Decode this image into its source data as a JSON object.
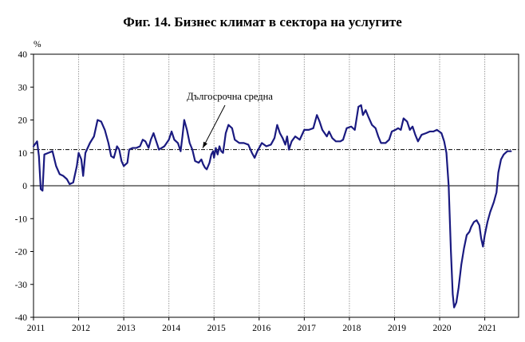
{
  "chart_data": {
    "type": "line",
    "title": "Фиг. 14. Бизнес климат в сектора на услугите",
    "ylabel": "%",
    "xlabel": "",
    "ylim": [
      -40,
      40
    ],
    "yticks": [
      40,
      30,
      20,
      10,
      0,
      -10,
      -20,
      -30,
      -40
    ],
    "xlim": [
      2011.0,
      2021.75
    ],
    "xticks": [
      "2011",
      "2012",
      "2013",
      "2014",
      "2015",
      "2016",
      "2017",
      "2018",
      "2019",
      "2020",
      "2021"
    ],
    "vertical_gridlines": "yearly, dotted",
    "reference_lines": [
      {
        "label": "Дългосрочна средна",
        "value": 11,
        "style": "dash-dot"
      },
      {
        "label": "",
        "value": 0,
        "style": "solid"
      }
    ],
    "annotation": {
      "text": "Дългосрочна средна",
      "arrow_to": {
        "x": 2014.75,
        "y": 11
      }
    },
    "series": [
      {
        "color": "#1a1a80",
        "points": [
          [
            2011.0,
            12
          ],
          [
            2011.08,
            13.5
          ],
          [
            2011.12,
            9
          ],
          [
            2011.16,
            -1
          ],
          [
            2011.2,
            -1.5
          ],
          [
            2011.24,
            9.5
          ],
          [
            2011.33,
            10
          ],
          [
            2011.42,
            10.5
          ],
          [
            2011.5,
            6
          ],
          [
            2011.58,
            3.5
          ],
          [
            2011.66,
            3
          ],
          [
            2011.74,
            2
          ],
          [
            2011.8,
            0.5
          ],
          [
            2011.88,
            1
          ],
          [
            2011.96,
            6
          ],
          [
            2012.0,
            10
          ],
          [
            2012.06,
            8
          ],
          [
            2012.1,
            3
          ],
          [
            2012.15,
            10
          ],
          [
            2012.25,
            13
          ],
          [
            2012.34,
            15
          ],
          [
            2012.42,
            20
          ],
          [
            2012.5,
            19.5
          ],
          [
            2012.58,
            17
          ],
          [
            2012.66,
            13
          ],
          [
            2012.72,
            9
          ],
          [
            2012.78,
            8.5
          ],
          [
            2012.85,
            12
          ],
          [
            2012.9,
            11
          ],
          [
            2012.95,
            7.5
          ],
          [
            2013.0,
            6
          ],
          [
            2013.08,
            7
          ],
          [
            2013.12,
            11
          ],
          [
            2013.2,
            11.5
          ],
          [
            2013.28,
            11.5
          ],
          [
            2013.36,
            12
          ],
          [
            2013.42,
            14
          ],
          [
            2013.48,
            13.5
          ],
          [
            2013.55,
            11.5
          ],
          [
            2013.6,
            14
          ],
          [
            2013.66,
            16
          ],
          [
            2013.72,
            13.5
          ],
          [
            2013.78,
            11
          ],
          [
            2013.84,
            11.5
          ],
          [
            2013.9,
            12
          ],
          [
            2014.0,
            14
          ],
          [
            2014.06,
            16.5
          ],
          [
            2014.12,
            14
          ],
          [
            2014.2,
            13
          ],
          [
            2014.26,
            10.5
          ],
          [
            2014.3,
            15
          ],
          [
            2014.34,
            20
          ],
          [
            2014.4,
            17
          ],
          [
            2014.46,
            13
          ],
          [
            2014.52,
            11
          ],
          [
            2014.58,
            7.5
          ],
          [
            2014.66,
            7
          ],
          [
            2014.72,
            8
          ],
          [
            2014.76,
            6.5
          ],
          [
            2014.8,
            5.5
          ],
          [
            2014.84,
            5
          ],
          [
            2014.9,
            7
          ],
          [
            2014.94,
            9.5
          ],
          [
            2014.98,
            10.5
          ],
          [
            2015.0,
            8.5
          ],
          [
            2015.04,
            11.5
          ],
          [
            2015.08,
            9.5
          ],
          [
            2015.12,
            12
          ],
          [
            2015.16,
            10.5
          ],
          [
            2015.2,
            10
          ],
          [
            2015.26,
            16
          ],
          [
            2015.32,
            18.5
          ],
          [
            2015.4,
            17.5
          ],
          [
            2015.46,
            14
          ],
          [
            2015.56,
            13
          ],
          [
            2015.66,
            13
          ],
          [
            2015.76,
            12.5
          ],
          [
            2015.84,
            10
          ],
          [
            2015.9,
            8.5
          ],
          [
            2015.96,
            10.5
          ],
          [
            2016.06,
            13
          ],
          [
            2016.16,
            12
          ],
          [
            2016.26,
            12.5
          ],
          [
            2016.34,
            14.5
          ],
          [
            2016.4,
            18.5
          ],
          [
            2016.46,
            16
          ],
          [
            2016.52,
            14.5
          ],
          [
            2016.58,
            12.5
          ],
          [
            2016.62,
            15
          ],
          [
            2016.66,
            11
          ],
          [
            2016.72,
            13.5
          ],
          [
            2016.8,
            15
          ],
          [
            2016.9,
            14
          ],
          [
            2017.0,
            17
          ],
          [
            2017.1,
            17
          ],
          [
            2017.2,
            17.5
          ],
          [
            2017.28,
            21.5
          ],
          [
            2017.34,
            19.5
          ],
          [
            2017.4,
            17
          ],
          [
            2017.5,
            15
          ],
          [
            2017.55,
            16.5
          ],
          [
            2017.62,
            14.5
          ],
          [
            2017.7,
            13.5
          ],
          [
            2017.8,
            13.5
          ],
          [
            2017.86,
            14
          ],
          [
            2017.94,
            17.5
          ],
          [
            2018.04,
            18
          ],
          [
            2018.12,
            17
          ],
          [
            2018.2,
            24
          ],
          [
            2018.26,
            24.5
          ],
          [
            2018.3,
            21.5
          ],
          [
            2018.36,
            23
          ],
          [
            2018.42,
            21
          ],
          [
            2018.5,
            18.5
          ],
          [
            2018.58,
            17.5
          ],
          [
            2018.64,
            15
          ],
          [
            2018.7,
            13
          ],
          [
            2018.8,
            13
          ],
          [
            2018.88,
            14
          ],
          [
            2018.94,
            16.5
          ],
          [
            2019.02,
            17
          ],
          [
            2019.08,
            17.5
          ],
          [
            2019.14,
            17
          ],
          [
            2019.2,
            20.5
          ],
          [
            2019.28,
            19.5
          ],
          [
            2019.34,
            17
          ],
          [
            2019.4,
            18
          ],
          [
            2019.46,
            15.5
          ],
          [
            2019.52,
            13.5
          ],
          [
            2019.6,
            15.5
          ],
          [
            2019.7,
            16
          ],
          [
            2019.78,
            16.5
          ],
          [
            2019.86,
            16.5
          ],
          [
            2019.94,
            17
          ],
          [
            2020.04,
            16
          ],
          [
            2020.1,
            13.5
          ],
          [
            2020.15,
            10
          ],
          [
            2020.2,
            0
          ],
          [
            2020.25,
            -20
          ],
          [
            2020.29,
            -33
          ],
          [
            2020.32,
            -37
          ],
          [
            2020.37,
            -35.5
          ],
          [
            2020.42,
            -31
          ],
          [
            2020.48,
            -24
          ],
          [
            2020.54,
            -19
          ],
          [
            2020.6,
            -15
          ],
          [
            2020.66,
            -14
          ],
          [
            2020.7,
            -12.5
          ],
          [
            2020.76,
            -11
          ],
          [
            2020.82,
            -10.5
          ],
          [
            2020.88,
            -12
          ],
          [
            2020.92,
            -16
          ],
          [
            2020.96,
            -18.5
          ],
          [
            2021.0,
            -15
          ],
          [
            2021.06,
            -11
          ],
          [
            2021.12,
            -8
          ],
          [
            2021.2,
            -5
          ],
          [
            2021.26,
            -2
          ],
          [
            2021.3,
            4
          ],
          [
            2021.36,
            8
          ],
          [
            2021.42,
            9.5
          ],
          [
            2021.5,
            10.5
          ],
          [
            2021.58,
            10.5
          ]
        ]
      }
    ]
  }
}
